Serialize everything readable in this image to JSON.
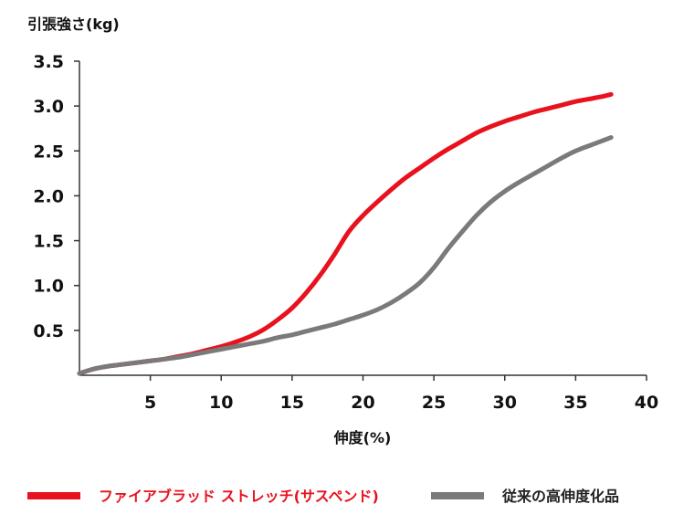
{
  "chart_data": {
    "type": "line",
    "ylabel": "引張強さ(kg)",
    "xlabel": "伸度(%)",
    "xlim": [
      0,
      40
    ],
    "ylim": [
      0,
      3.5
    ],
    "x_ticks": [
      "5",
      "10",
      "15",
      "20",
      "25",
      "30",
      "35",
      "40"
    ],
    "y_ticks": [
      "0.5",
      "1.0",
      "1.5",
      "2.0",
      "2.5",
      "3.0",
      "3.5"
    ],
    "grid": false,
    "legend_position": "bottom",
    "series": [
      {
        "name": "ファイアブラッド ストレッチ(サスペンド)",
        "color": "#e8121f",
        "points": [
          [
            0,
            0.02
          ],
          [
            1,
            0.07
          ],
          [
            2,
            0.1
          ],
          [
            3,
            0.12
          ],
          [
            4,
            0.14
          ],
          [
            5,
            0.16
          ],
          [
            6,
            0.18
          ],
          [
            7,
            0.21
          ],
          [
            8,
            0.24
          ],
          [
            9,
            0.28
          ],
          [
            10,
            0.32
          ],
          [
            11,
            0.37
          ],
          [
            12,
            0.43
          ],
          [
            13,
            0.51
          ],
          [
            14,
            0.62
          ],
          [
            15,
            0.75
          ],
          [
            16,
            0.92
          ],
          [
            17,
            1.12
          ],
          [
            18,
            1.35
          ],
          [
            19,
            1.6
          ],
          [
            20,
            1.78
          ],
          [
            21,
            1.93
          ],
          [
            22,
            2.07
          ],
          [
            23,
            2.2
          ],
          [
            24,
            2.31
          ],
          [
            25,
            2.42
          ],
          [
            26,
            2.52
          ],
          [
            27,
            2.61
          ],
          [
            28,
            2.7
          ],
          [
            29,
            2.77
          ],
          [
            30,
            2.83
          ],
          [
            31,
            2.88
          ],
          [
            32,
            2.93
          ],
          [
            33,
            2.97
          ],
          [
            34,
            3.01
          ],
          [
            35,
            3.05
          ],
          [
            36,
            3.08
          ],
          [
            37,
            3.11
          ],
          [
            37.5,
            3.13
          ]
        ]
      },
      {
        "name": "従来の高伸度化品",
        "color": "#7a7a7a",
        "points": [
          [
            0,
            0.02
          ],
          [
            1,
            0.07
          ],
          [
            2,
            0.1
          ],
          [
            3,
            0.12
          ],
          [
            4,
            0.14
          ],
          [
            5,
            0.16
          ],
          [
            6,
            0.18
          ],
          [
            7,
            0.2
          ],
          [
            8,
            0.23
          ],
          [
            9,
            0.26
          ],
          [
            10,
            0.29
          ],
          [
            11,
            0.32
          ],
          [
            12,
            0.35
          ],
          [
            13,
            0.38
          ],
          [
            14,
            0.42
          ],
          [
            15,
            0.45
          ],
          [
            16,
            0.49
          ],
          [
            17,
            0.53
          ],
          [
            18,
            0.57
          ],
          [
            19,
            0.62
          ],
          [
            20,
            0.67
          ],
          [
            21,
            0.73
          ],
          [
            22,
            0.81
          ],
          [
            23,
            0.91
          ],
          [
            24,
            1.03
          ],
          [
            25,
            1.2
          ],
          [
            26,
            1.41
          ],
          [
            27,
            1.6
          ],
          [
            28,
            1.78
          ],
          [
            29,
            1.93
          ],
          [
            30,
            2.05
          ],
          [
            31,
            2.15
          ],
          [
            32,
            2.24
          ],
          [
            33,
            2.33
          ],
          [
            34,
            2.42
          ],
          [
            35,
            2.5
          ],
          [
            36,
            2.56
          ],
          [
            37,
            2.62
          ],
          [
            37.5,
            2.65
          ]
        ]
      }
    ]
  }
}
